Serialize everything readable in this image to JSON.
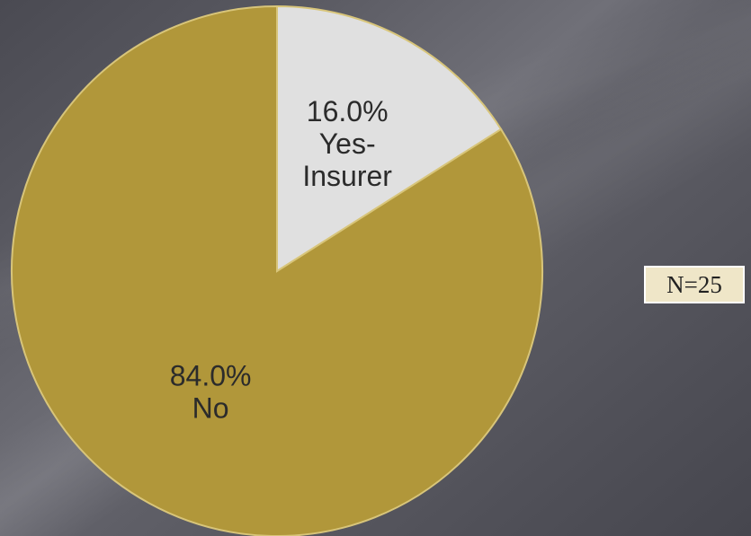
{
  "note": "N=25",
  "colors": {
    "no": "#b1973a",
    "yes_insurer": "#e0e0e0",
    "slice_border": "#d8c57a"
  },
  "chart_data": {
    "type": "pie",
    "title": "",
    "slices": [
      {
        "label": "Yes-Insurer",
        "value": 16.0,
        "percent_label": "16.0%",
        "label_lines": [
          "Yes-",
          "Insurer"
        ],
        "color": "#e0e0e0"
      },
      {
        "label": "No",
        "value": 84.0,
        "percent_label": "84.0%",
        "label_lines": [
          "No"
        ],
        "color": "#b1973a"
      }
    ],
    "start_angle": "12 o'clock",
    "direction": "clockwise",
    "legend": "none"
  }
}
